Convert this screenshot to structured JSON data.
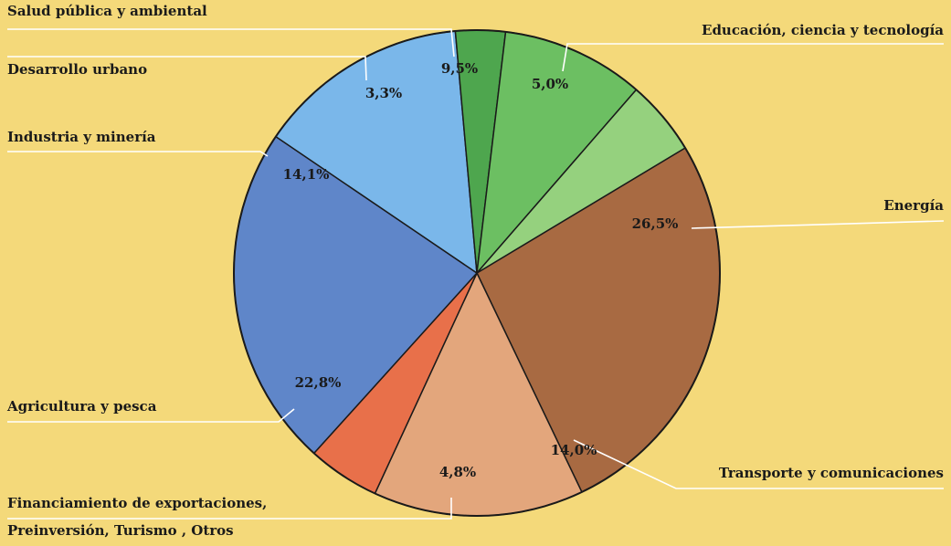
{
  "chart_data": {
    "type": "pie",
    "title": "",
    "slices": [
      {
        "label": "Energía",
        "value": 26.5,
        "value_label": "26,5%",
        "color": "#a86a42"
      },
      {
        "label": "Transporte y comunicaciones",
        "value": 14.0,
        "value_label": "14,0%",
        "color": "#e3a67c"
      },
      {
        "label": "Financiamiento de exportaciones, Preinversión, Turismo, Otros",
        "label_lines": [
          "Financiamiento de exportaciones,",
          "Preinversión, Turismo , Otros"
        ],
        "value": 4.8,
        "value_label": "4,8%",
        "color": "#e8704a"
      },
      {
        "label": "Agricultura y pesca",
        "value": 22.8,
        "value_label": "22,8%",
        "color": "#5f86c9"
      },
      {
        "label": "Industria y minería",
        "value": 14.1,
        "value_label": "14,1%",
        "color": "#7ab7ea"
      },
      {
        "label": "Desarrollo urbano",
        "value": 3.3,
        "value_label": "3,3%",
        "color": "#4ea64e"
      },
      {
        "label": "Salud pública y ambiental",
        "value": 9.5,
        "value_label": "9,5%",
        "color": "#6cbf62"
      },
      {
        "label": "Educación, ciencia y tecnología",
        "value": 5.0,
        "value_label": "5,0%",
        "color": "#95d17e"
      }
    ],
    "legend": "none"
  }
}
